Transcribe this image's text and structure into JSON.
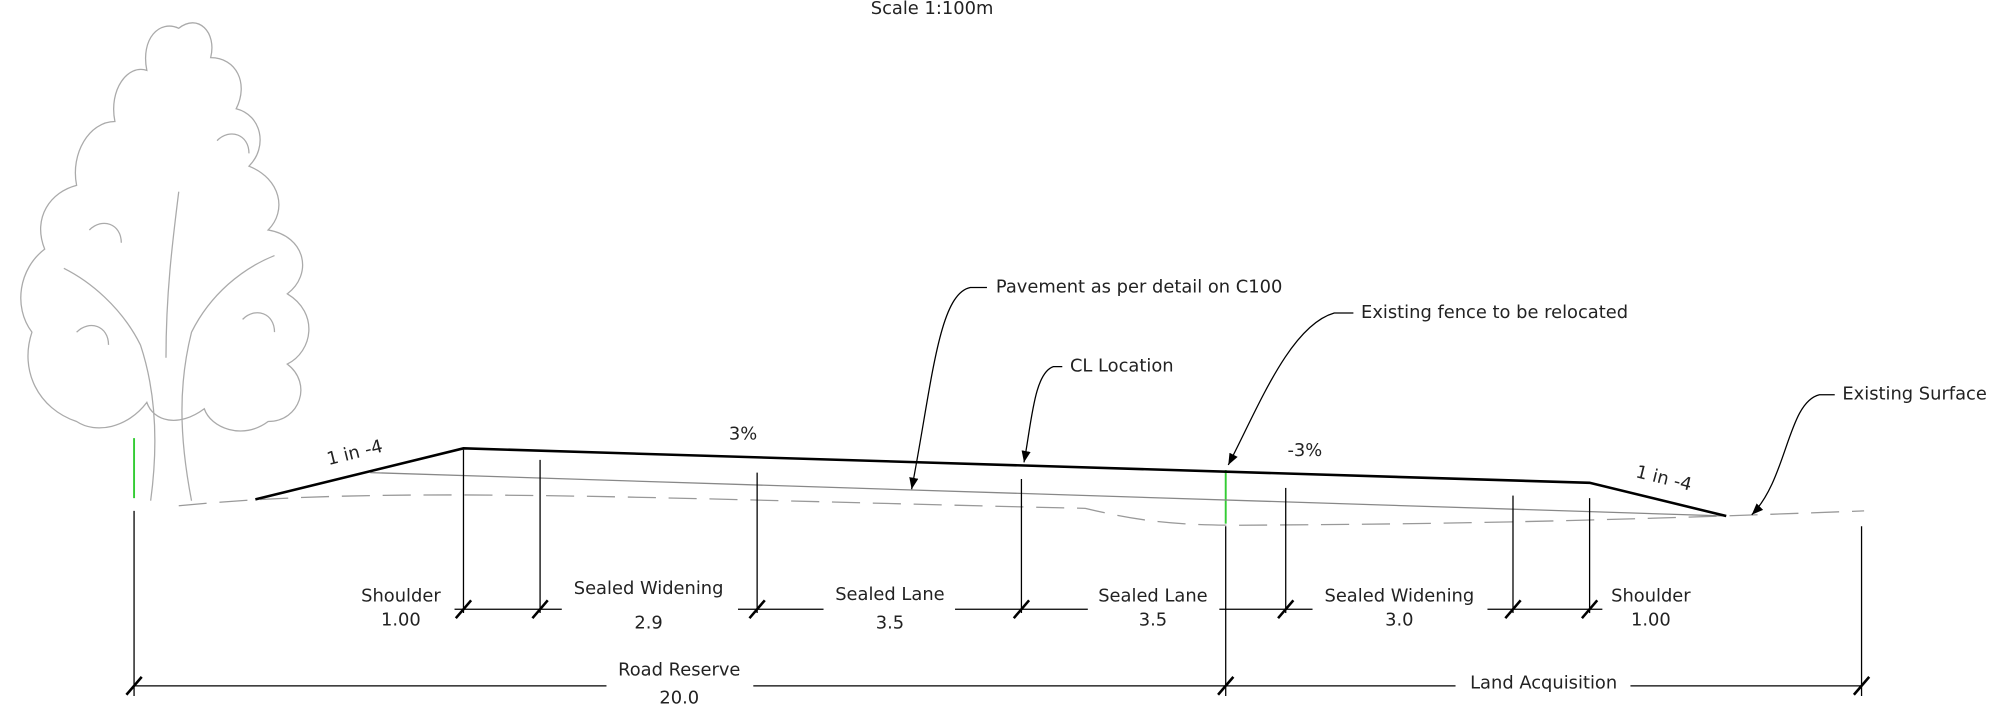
{
  "scale": "Scale 1:100m",
  "callouts": [
    "Pavement as per detail on C100",
    "CL Location",
    "Existing fence to be relocated",
    "Existing Surface"
  ],
  "slopes": [
    "1 in -4",
    "3%",
    "-3%",
    "1 in -4"
  ],
  "segments": [
    {
      "label": "Shoulder",
      "width": "1.00"
    },
    {
      "label": "Sealed Widening",
      "width": "2.9"
    },
    {
      "label": "Sealed Lane",
      "width": "3.5"
    },
    {
      "label": "Sealed Lane",
      "width": "3.5"
    },
    {
      "label": "Sealed Widening",
      "width": "3.0"
    },
    {
      "label": "Shoulder",
      "width": "1.00"
    }
  ],
  "extents": [
    {
      "label": "Road Reserve",
      "width": "20.0"
    },
    {
      "label": "Land Acquisition"
    }
  ]
}
